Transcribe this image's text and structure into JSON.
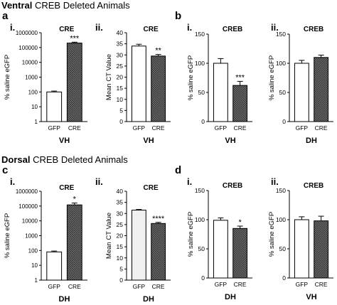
{
  "sections": [
    {
      "title_bold": "Ventral",
      "title_rest": "CREB Deleted Animals"
    },
    {
      "title_bold": "Dorsal",
      "title_rest": "CREB Deleted Animals"
    }
  ],
  "panel_letters": [
    "a",
    "b",
    "c",
    "d"
  ],
  "colors": {
    "gfp_fill": "#ffffff",
    "cre_fill": "#777777",
    "stroke": "#000000",
    "ct_gfp_fill": "#f0f0f0"
  },
  "chart_data": [
    {
      "id": "a-i",
      "type": "bar",
      "sub": "i.",
      "title": "CRE",
      "ylabel": "% saline eGFP",
      "xlabel": "VH",
      "categories": [
        "GFP",
        "CRE"
      ],
      "values": [
        100,
        200000
      ],
      "errors": [
        15,
        30000
      ],
      "significance": [
        "",
        "***"
      ],
      "log": true,
      "ylim": [
        1,
        1000000
      ],
      "yticks": [
        1,
        10,
        100,
        1000,
        10000,
        100000,
        1000000
      ],
      "yticklabels": [
        "1",
        "10",
        "100",
        "1000",
        "10000",
        "100000",
        "1000000"
      ]
    },
    {
      "id": "a-ii",
      "type": "bar",
      "sub": "ii.",
      "title": "CRE",
      "ylabel": "Mean CT Value",
      "xlabel": "VH",
      "categories": [
        "GFP",
        "CRE"
      ],
      "values": [
        34,
        29.5
      ],
      "errors": [
        0.8,
        0.7
      ],
      "significance": [
        "",
        "**"
      ],
      "log": false,
      "ylim": [
        0,
        40
      ],
      "yticks": [
        0,
        5,
        10,
        15,
        20,
        25,
        30,
        35,
        40
      ],
      "yticklabels": [
        "0",
        "5",
        "10",
        "15",
        "20",
        "25",
        "30",
        "35",
        "40"
      ]
    },
    {
      "id": "b-i",
      "type": "bar",
      "sub": "i.",
      "title": "CREB",
      "ylabel": "% saline eGFP",
      "xlabel": "VH",
      "categories": [
        "GFP",
        "CRE"
      ],
      "values": [
        100,
        62
      ],
      "errors": [
        8,
        7
      ],
      "significance": [
        "",
        "***"
      ],
      "log": false,
      "ylim": [
        0,
        150
      ],
      "yticks": [
        0,
        50,
        100,
        150
      ],
      "yticklabels": [
        "0",
        "50",
        "100",
        "150"
      ]
    },
    {
      "id": "b-ii",
      "type": "bar",
      "sub": "ii.",
      "title": "CREB",
      "ylabel": "% saline eGFP",
      "xlabel": "DH",
      "categories": [
        "GFP",
        "CRE"
      ],
      "values": [
        100,
        110
      ],
      "errors": [
        5,
        4
      ],
      "significance": [
        "",
        ""
      ],
      "log": false,
      "ylim": [
        0,
        150
      ],
      "yticks": [
        0,
        50,
        100,
        150
      ],
      "yticklabels": [
        "0",
        "50",
        "100",
        "150"
      ]
    },
    {
      "id": "c-i",
      "type": "bar",
      "sub": "i.",
      "title": "CRE",
      "ylabel": "% saline eGFP",
      "xlabel": "DH",
      "categories": [
        "GFP",
        "CRE"
      ],
      "values": [
        80,
        120000
      ],
      "errors": [
        12,
        40000
      ],
      "significance": [
        "",
        "*"
      ],
      "log": true,
      "ylim": [
        1,
        1000000
      ],
      "yticks": [
        1,
        10,
        100,
        1000,
        10000,
        100000,
        1000000
      ],
      "yticklabels": [
        "1",
        "10",
        "100",
        "1000",
        "10000",
        "100000",
        "1000000"
      ]
    },
    {
      "id": "c-ii",
      "type": "bar",
      "sub": "ii.",
      "title": "CRE",
      "ylabel": "Mean CT Value",
      "xlabel": "DH",
      "categories": [
        "GFP",
        "CRE"
      ],
      "values": [
        31.5,
        25.5
      ],
      "errors": [
        0.3,
        0.5
      ],
      "significance": [
        "",
        "****"
      ],
      "log": false,
      "ylim": [
        0,
        40
      ],
      "yticks": [
        0,
        5,
        10,
        15,
        20,
        25,
        30,
        35,
        40
      ],
      "yticklabels": [
        "0",
        "5",
        "10",
        "15",
        "20",
        "25",
        "30",
        "35",
        "40"
      ]
    },
    {
      "id": "d-i",
      "type": "bar",
      "sub": "i.",
      "title": "CREB",
      "ylabel": "% saline eGFP",
      "xlabel": "DH",
      "categories": [
        "GFP",
        "CRE"
      ],
      "values": [
        99,
        85
      ],
      "errors": [
        4,
        4
      ],
      "significance": [
        "",
        "*"
      ],
      "log": false,
      "ylim": [
        0,
        150
      ],
      "yticks": [
        0,
        50,
        100,
        150
      ],
      "yticklabels": [
        "0",
        "50",
        "100",
        "150"
      ]
    },
    {
      "id": "d-ii",
      "type": "bar",
      "sub": "ii.",
      "title": "CREB",
      "ylabel": "% saline eGFP",
      "xlabel": "VH",
      "categories": [
        "GFP",
        "CRE"
      ],
      "values": [
        100,
        98
      ],
      "errors": [
        5,
        8
      ],
      "significance": [
        "",
        ""
      ],
      "log": false,
      "ylim": [
        0,
        150
      ],
      "yticks": [
        0,
        50,
        100,
        150
      ],
      "yticklabels": [
        "0",
        "50",
        "100",
        "150"
      ]
    }
  ]
}
